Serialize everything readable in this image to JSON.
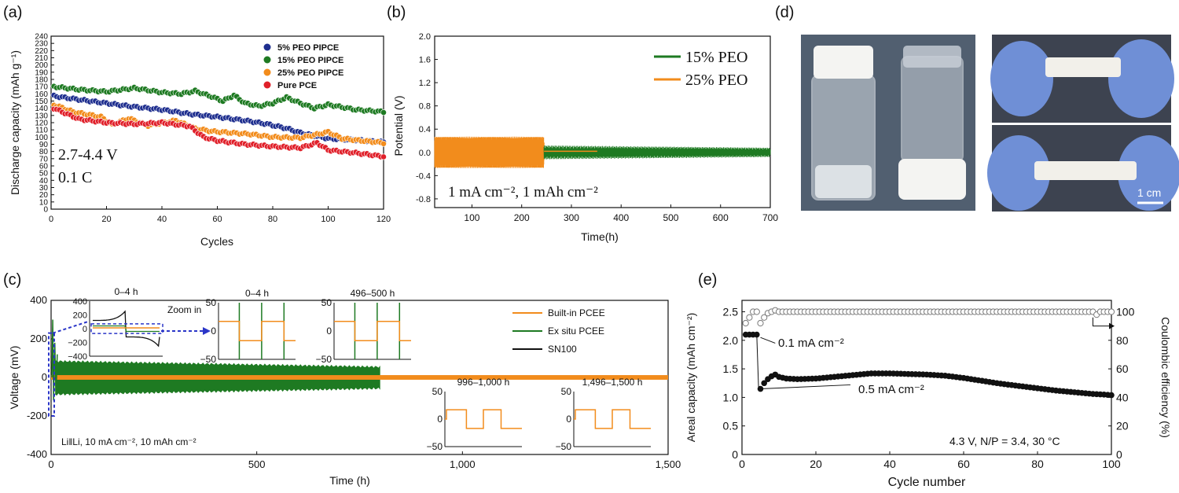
{
  "colors": {
    "blue": "#1f2f8f",
    "green": "#1e7a22",
    "orange": "#f28c1c",
    "red": "#e0202a",
    "gray": "#7a7a7a",
    "black": "#111111",
    "dashblue": "#2b36c8"
  },
  "chart_data": [
    {
      "panel": "(a)",
      "type": "scatter",
      "xlabel": "Cycles",
      "ylabel": "Discharge capacity (mAh g⁻¹)",
      "xlim": [
        0,
        120
      ],
      "ylim": [
        0,
        240
      ],
      "xticks": [
        "0",
        "20",
        "40",
        "60",
        "80",
        "100",
        "120"
      ],
      "yticks": [
        "0",
        "10",
        "20",
        "30",
        "40",
        "50",
        "60",
        "70",
        "80",
        "90",
        "100",
        "110",
        "120",
        "130",
        "140",
        "150",
        "160",
        "170",
        "180",
        "190",
        "200",
        "210",
        "220",
        "230",
        "240"
      ],
      "annotations": [
        "2.7-4.4 V",
        "0.1 C"
      ],
      "legend_position": "top-right",
      "series": [
        {
          "name": "5% PEO PIPCE",
          "color_key": "blue",
          "x": [
            1,
            10,
            20,
            30,
            40,
            50,
            60,
            70,
            78,
            85,
            90,
            100,
            110,
            120
          ],
          "y": [
            157,
            152,
            147,
            142,
            138,
            132,
            128,
            123,
            118,
            112,
            106,
            98,
            96,
            93
          ]
        },
        {
          "name": "15% PEO PIPCE",
          "color_key": "green",
          "x": [
            1,
            10,
            20,
            30,
            40,
            47,
            52,
            58,
            62,
            66,
            70,
            75,
            80,
            85,
            90,
            95,
            100,
            110,
            120
          ],
          "y": [
            170,
            166,
            163,
            168,
            162,
            160,
            164,
            156,
            150,
            158,
            147,
            143,
            147,
            155,
            147,
            140,
            145,
            138,
            135
          ]
        },
        {
          "name": "25% PEO PIPCE",
          "color_key": "orange",
          "x": [
            1,
            8,
            18,
            22,
            28,
            35,
            45,
            52,
            58,
            65,
            72,
            80,
            90,
            95,
            100,
            105,
            112,
            120
          ],
          "y": [
            145,
            135,
            128,
            117,
            126,
            116,
            123,
            112,
            108,
            106,
            104,
            100,
            99,
            103,
            107,
            98,
            95,
            92
          ]
        },
        {
          "name": "Pure PCE",
          "color_key": "red",
          "x": [
            1,
            10,
            20,
            30,
            40,
            50,
            55,
            60,
            70,
            80,
            90,
            96,
            100,
            110,
            120
          ],
          "y": [
            140,
            125,
            120,
            118,
            120,
            115,
            100,
            95,
            90,
            87,
            85,
            92,
            82,
            78,
            73
          ]
        }
      ]
    },
    {
      "panel": "(b)",
      "type": "line",
      "xlabel": "Time(h)",
      "ylabel": "Potential (V)",
      "xlim": [
        25,
        700
      ],
      "ylim": [
        -0.95,
        2.0
      ],
      "xticks": [
        "100",
        "200",
        "300",
        "400",
        "500",
        "600",
        "700"
      ],
      "yticks": [
        "-0.8",
        "-0.4",
        "0.0",
        "0.4",
        "0.8",
        "1.2",
        "1.6",
        "2.0"
      ],
      "annotation": "1 mA cm⁻²,  1 mAh cm⁻²",
      "legend_position": "top-right",
      "series": [
        {
          "name": "15% PEO",
          "color_key": "green",
          "x_range": [
            245,
            700
          ],
          "amplitude_start": 0.12,
          "amplitude_end": 0.08
        },
        {
          "name": "25% PEO",
          "color_key": "orange",
          "x_range": [
            25,
            245
          ],
          "amplitude_start": 0.27,
          "amplitude_end": 0.27
        }
      ]
    },
    {
      "panel": "(c)",
      "type": "line",
      "xlabel": "Time (h)",
      "ylabel": "Voltage (mV)",
      "xlim": [
        0,
        1500
      ],
      "ylim": [
        -400,
        400
      ],
      "xticks": [
        "0",
        "500",
        "1,000",
        "1,500"
      ],
      "yticks": [
        "-400",
        "-200",
        "0",
        "200",
        "400"
      ],
      "annotation": "Li‖Li, 10 mA cm⁻², 10 mAh cm⁻²",
      "zoom_label": "Zoom in",
      "legend_position": "top-right",
      "series": [
        {
          "name": "Built-in PCEE",
          "color_key": "orange",
          "x_range": [
            0,
            1500
          ],
          "amplitude": 12
        },
        {
          "name": "Ex situ PCEE",
          "color_key": "green",
          "x_range": [
            0,
            800
          ],
          "amplitude": 85
        },
        {
          "name": "SN100",
          "color_key": "black",
          "x_range": [
            0,
            4
          ],
          "amplitude": 250
        }
      ],
      "insets": [
        {
          "title": "0–4 h",
          "yticks": [
            "400",
            "200",
            "0",
            "−200",
            "−400"
          ]
        },
        {
          "title": "0–4 h",
          "yticks": [
            "50",
            "0",
            "−50"
          ]
        },
        {
          "title": "496–500 h",
          "yticks": [
            "50",
            "0",
            "−50"
          ]
        },
        {
          "title": "996–1,000 h",
          "yticks": [
            "50",
            "0",
            "−50"
          ]
        },
        {
          "title": "1,496–1,500 h",
          "yticks": [
            "50",
            "0",
            "−50"
          ]
        }
      ]
    },
    {
      "panel": "(e)",
      "type": "scatter",
      "xlabel": "Cycle number",
      "ylabel_left": "Areal capacity (mAh cm⁻²)",
      "ylabel_right": "Coulombic efficiency (%)",
      "xlim": [
        0,
        100
      ],
      "ylim_left": [
        0,
        2.7
      ],
      "ylim_right": [
        0,
        108
      ],
      "xticks": [
        "0",
        "20",
        "40",
        "60",
        "80",
        "100"
      ],
      "yticks_left": [
        "0",
        "0.5",
        "1.0",
        "1.5",
        "2.0",
        "2.5"
      ],
      "yticks_right": [
        "0",
        "20",
        "40",
        "60",
        "80",
        "100"
      ],
      "annotations": [
        "0.1 mA cm⁻²",
        "0.5 mA cm⁻²",
        "4.3 V, N/P = 3.4, 30 °C"
      ],
      "series": [
        {
          "name": "Areal capacity",
          "color_key": "black",
          "x": [
            1,
            2,
            3,
            4,
            5,
            6,
            7,
            8,
            9,
            10,
            12,
            15,
            20,
            25,
            30,
            35,
            40,
            45,
            50,
            55,
            60,
            65,
            70,
            75,
            80,
            85,
            90,
            95,
            98,
            100
          ],
          "y": [
            2.1,
            2.1,
            2.1,
            2.1,
            1.15,
            1.25,
            1.32,
            1.37,
            1.4,
            1.36,
            1.33,
            1.32,
            1.33,
            1.36,
            1.39,
            1.42,
            1.42,
            1.41,
            1.4,
            1.38,
            1.34,
            1.29,
            1.24,
            1.2,
            1.16,
            1.12,
            1.09,
            1.06,
            1.05,
            1.04
          ]
        },
        {
          "name": "Coulombic efficiency",
          "color_key": "gray",
          "x": [
            1,
            2,
            3,
            4,
            5,
            6,
            7,
            8,
            9,
            10,
            15,
            20,
            30,
            40,
            50,
            60,
            70,
            80,
            90,
            95,
            96,
            97,
            98,
            100
          ],
          "y": [
            92,
            96,
            100,
            100,
            92,
            96,
            99,
            100,
            101,
            100,
            100,
            100,
            100,
            100,
            100,
            100,
            100,
            100,
            100,
            100,
            98,
            100,
            100,
            100
          ]
        }
      ]
    }
  ],
  "panel_labels": {
    "a": "(a)",
    "b": "(b)",
    "c": "(c)",
    "d": "(d)",
    "e": "(e)"
  },
  "photo": {
    "scale_label": "1 cm"
  }
}
